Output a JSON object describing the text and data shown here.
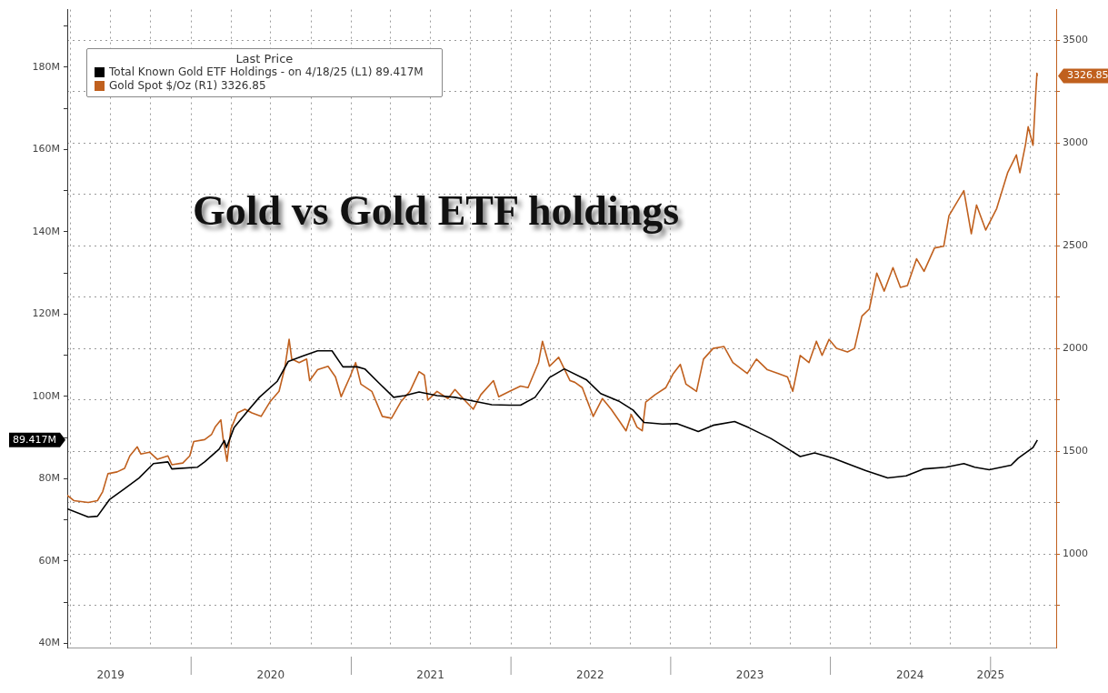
{
  "chart_data": {
    "type": "line",
    "title": "Gold vs Gold ETF holdings",
    "legend_title": "Last Price",
    "legend": "top left",
    "grid": true,
    "marker": "none",
    "line_style": "solid",
    "annotations": [
      "89.417M",
      "3326.85"
    ],
    "xlim": [
      "2019-03-24",
      "2025-05-31"
    ],
    "xticks": [
      {
        "value": "2019-04-01",
        "label": null
      },
      {
        "value": "2019-07-01",
        "label": "2019"
      },
      {
        "value": "2019-10-01",
        "label": null
      },
      {
        "value": "2020-01-01",
        "label": null
      },
      {
        "value": "2020-04-01",
        "label": null
      },
      {
        "value": "2020-07-01",
        "label": "2020"
      },
      {
        "value": "2020-10-01",
        "label": null
      },
      {
        "value": "2021-01-01",
        "label": null
      },
      {
        "value": "2021-04-01",
        "label": null
      },
      {
        "value": "2021-07-01",
        "label": "2021"
      },
      {
        "value": "2021-10-01",
        "label": null
      },
      {
        "value": "2022-01-01",
        "label": null
      },
      {
        "value": "2022-04-01",
        "label": null
      },
      {
        "value": "2022-07-01",
        "label": "2022"
      },
      {
        "value": "2022-10-01",
        "label": null
      },
      {
        "value": "2023-01-01",
        "label": null
      },
      {
        "value": "2023-04-01",
        "label": null
      },
      {
        "value": "2023-07-01",
        "label": "2023"
      },
      {
        "value": "2023-10-01",
        "label": null
      },
      {
        "value": "2024-01-01",
        "label": null
      },
      {
        "value": "2024-04-01",
        "label": null
      },
      {
        "value": "2024-07-01",
        "label": "2024"
      },
      {
        "value": "2024-10-01",
        "label": null
      },
      {
        "value": "2025-01-01",
        "label": "2025"
      },
      {
        "value": "2025-04-01",
        "label": null
      }
    ],
    "ylim": [
      39,
      194
    ],
    "yticks": [
      {
        "value": 40,
        "label": "40M"
      },
      {
        "value": 50,
        "label": null
      },
      {
        "value": 60,
        "label": "60M"
      },
      {
        "value": 70,
        "label": null
      },
      {
        "value": 80,
        "label": "80M"
      },
      {
        "value": 90,
        "label": null
      },
      {
        "value": 100,
        "label": "100M"
      },
      {
        "value": 110,
        "label": null
      },
      {
        "value": 120,
        "label": "120M"
      },
      {
        "value": 130,
        "label": null
      },
      {
        "value": 140,
        "label": "140M"
      },
      {
        "value": 150,
        "label": null
      },
      {
        "value": 160,
        "label": "160M"
      },
      {
        "value": 170,
        "label": null
      },
      {
        "value": 180,
        "label": "180M"
      },
      {
        "value": 190,
        "label": null
      }
    ],
    "y2lim": [
      545,
      3650
    ],
    "y2ticks": [
      {
        "value": 750,
        "label": null
      },
      1000,
      {
        "value": 1250,
        "label": null
      },
      1500,
      {
        "value": 1750,
        "label": null
      },
      2000,
      {
        "value": 2250,
        "label": null
      },
      2500,
      {
        "value": 2750,
        "label": null
      },
      3000,
      {
        "value": 3250,
        "label": null
      },
      3500
    ],
    "series": [
      {
        "name": "Total Known Gold ETF Holdings - on 4/18/25 (L1) 89.417M",
        "color": "#000000",
        "axis": "y",
        "x": [
          "2019-03-24",
          "2019-05-11",
          "2019-06-01",
          "2019-06-29",
          "2019-08-02",
          "2019-09-04",
          "2019-10-07",
          "2019-11-09",
          "2019-11-18",
          "2020-01-15",
          "2020-02-01",
          "2020-03-05",
          "2020-03-17",
          "2020-03-22",
          "2020-04-08",
          "2020-05-11",
          "2020-06-05",
          "2020-07-16",
          "2020-08-10",
          "2020-09-12",
          "2020-10-16",
          "2020-11-18",
          "2020-12-13",
          "2021-01-15",
          "2021-02-01",
          "2021-03-05",
          "2021-04-08",
          "2021-05-03",
          "2021-06-05",
          "2021-07-16",
          "2021-08-26",
          "2021-10-07",
          "2021-11-18",
          "2021-12-29",
          "2022-01-23",
          "2022-02-25",
          "2022-03-30",
          "2022-05-03",
          "2022-06-22",
          "2022-07-25",
          "2022-09-04",
          "2022-10-07",
          "2022-11-01",
          "2022-12-13",
          "2023-01-15",
          "2023-03-05",
          "2023-04-08",
          "2023-05-27",
          "2023-06-29",
          "2023-08-18",
          "2023-09-21",
          "2023-10-24",
          "2023-11-26",
          "2024-01-07",
          "2024-03-22",
          "2024-05-11",
          "2024-06-22",
          "2024-08-02",
          "2024-09-21",
          "2024-11-01",
          "2024-11-26",
          "2024-12-29",
          "2025-02-17",
          "2025-03-05",
          "2025-04-08",
          "2025-04-18"
        ],
        "values": [
          72.7,
          70.7,
          70.9,
          75.0,
          77.6,
          80.2,
          83.7,
          84.1,
          82.4,
          82.8,
          84.1,
          87.2,
          89.3,
          87.6,
          92.4,
          96.7,
          99.8,
          103.7,
          108.5,
          109.8,
          111.1,
          111.1,
          107.2,
          107.2,
          106.7,
          103.3,
          99.8,
          100.2,
          101.1,
          100.2,
          99.8,
          98.9,
          98.0,
          97.9,
          97.9,
          99.8,
          104.6,
          106.7,
          104.1,
          100.7,
          98.9,
          96.7,
          93.7,
          93.3,
          93.4,
          91.5,
          93.0,
          93.9,
          92.4,
          89.8,
          87.6,
          85.4,
          86.3,
          85.0,
          82.0,
          80.2,
          80.7,
          82.4,
          82.8,
          83.7,
          82.8,
          82.2,
          83.3,
          85.0,
          87.6,
          89.417
        ]
      },
      {
        "name": "Gold Spot $/Oz (R1) 3326.85",
        "color": "#c0601e",
        "axis": "y2",
        "x": [
          "2019-03-24",
          "2019-04-08",
          "2019-05-11",
          "2019-06-01",
          "2019-06-13",
          "2019-06-25",
          "2019-07-16",
          "2019-08-02",
          "2019-08-14",
          "2019-08-31",
          "2019-09-08",
          "2019-09-28",
          "2019-10-16",
          "2019-11-09",
          "2019-11-18",
          "2019-12-13",
          "2019-12-29",
          "2020-01-07",
          "2020-02-01",
          "2020-02-17",
          "2020-02-25",
          "2020-03-09",
          "2020-03-14",
          "2020-03-23",
          "2020-04-01",
          "2020-04-16",
          "2020-05-03",
          "2020-05-19",
          "2020-06-09",
          "2020-06-29",
          "2020-07-20",
          "2020-08-02",
          "2020-08-12",
          "2020-08-18",
          "2020-09-04",
          "2020-09-21",
          "2020-09-28",
          "2020-10-16",
          "2020-11-09",
          "2020-11-26",
          "2020-12-09",
          "2020-12-29",
          "2021-01-11",
          "2021-01-23",
          "2021-02-17",
          "2021-03-13",
          "2021-04-03",
          "2021-04-24",
          "2021-05-15",
          "2021-06-05",
          "2021-06-17",
          "2021-06-25",
          "2021-07-16",
          "2021-08-10",
          "2021-08-26",
          "2021-09-21",
          "2021-10-07",
          "2021-10-24",
          "2021-11-22",
          "2021-12-04",
          "2021-12-29",
          "2022-01-23",
          "2022-02-09",
          "2022-03-05",
          "2022-03-14",
          "2022-03-30",
          "2022-04-20",
          "2022-05-16",
          "2022-05-27",
          "2022-06-13",
          "2022-07-08",
          "2022-07-29",
          "2022-08-18",
          "2022-09-04",
          "2022-09-21",
          "2022-10-03",
          "2022-10-16",
          "2022-10-28",
          "2022-11-05",
          "2022-11-26",
          "2022-12-21",
          "2023-01-07",
          "2023-01-23",
          "2023-02-05",
          "2023-03-01",
          "2023-03-17",
          "2023-04-08",
          "2023-05-03",
          "2023-05-23",
          "2023-06-25",
          "2023-07-16",
          "2023-08-10",
          "2023-09-04",
          "2023-09-25",
          "2023-10-07",
          "2023-10-24",
          "2023-11-13",
          "2023-11-30",
          "2023-12-13",
          "2023-12-29",
          "2024-01-15",
          "2024-02-09",
          "2024-02-25",
          "2024-03-13",
          "2024-03-30",
          "2024-04-16",
          "2024-05-03",
          "2024-05-23",
          "2024-06-09",
          "2024-06-25",
          "2024-07-16",
          "2024-08-02",
          "2024-08-26",
          "2024-09-16",
          "2024-09-28",
          "2024-11-01",
          "2024-11-18",
          "2024-11-30",
          "2024-12-21",
          "2025-01-15",
          "2025-02-09",
          "2025-03-01",
          "2025-03-09",
          "2025-03-22",
          "2025-03-28",
          "2025-04-08",
          "2025-04-14",
          "2025-04-17",
          "2025-04-18"
        ],
        "values": [
          1286,
          1260,
          1251,
          1260,
          1304,
          1391,
          1400,
          1417,
          1478,
          1522,
          1487,
          1496,
          1461,
          1478,
          1435,
          1443,
          1478,
          1548,
          1557,
          1583,
          1618,
          1653,
          1565,
          1452,
          1609,
          1687,
          1705,
          1687,
          1670,
          1740,
          1792,
          1905,
          2045,
          1949,
          1932,
          1949,
          1844,
          1897,
          1914,
          1862,
          1766,
          1862,
          1932,
          1827,
          1792,
          1670,
          1661,
          1740,
          1792,
          1888,
          1871,
          1749,
          1792,
          1757,
          1801,
          1740,
          1705,
          1775,
          1844,
          1766,
          1792,
          1818,
          1810,
          1932,
          2036,
          1914,
          1958,
          1844,
          1836,
          1810,
          1670,
          1757,
          1705,
          1653,
          1600,
          1679,
          1618,
          1600,
          1740,
          1775,
          1810,
          1879,
          1923,
          1827,
          1792,
          1949,
          2001,
          2010,
          1932,
          1879,
          1949,
          1897,
          1879,
          1862,
          1792,
          1967,
          1932,
          2036,
          1967,
          2045,
          2001,
          1984,
          2001,
          2158,
          2193,
          2368,
          2280,
          2394,
          2298,
          2307,
          2437,
          2376,
          2490,
          2498,
          2647,
          2769,
          2559,
          2699,
          2577,
          2682,
          2856,
          2943,
          2856,
          2995,
          3080,
          2990,
          3230,
          3340,
          3326.85
        ]
      }
    ]
  }
}
